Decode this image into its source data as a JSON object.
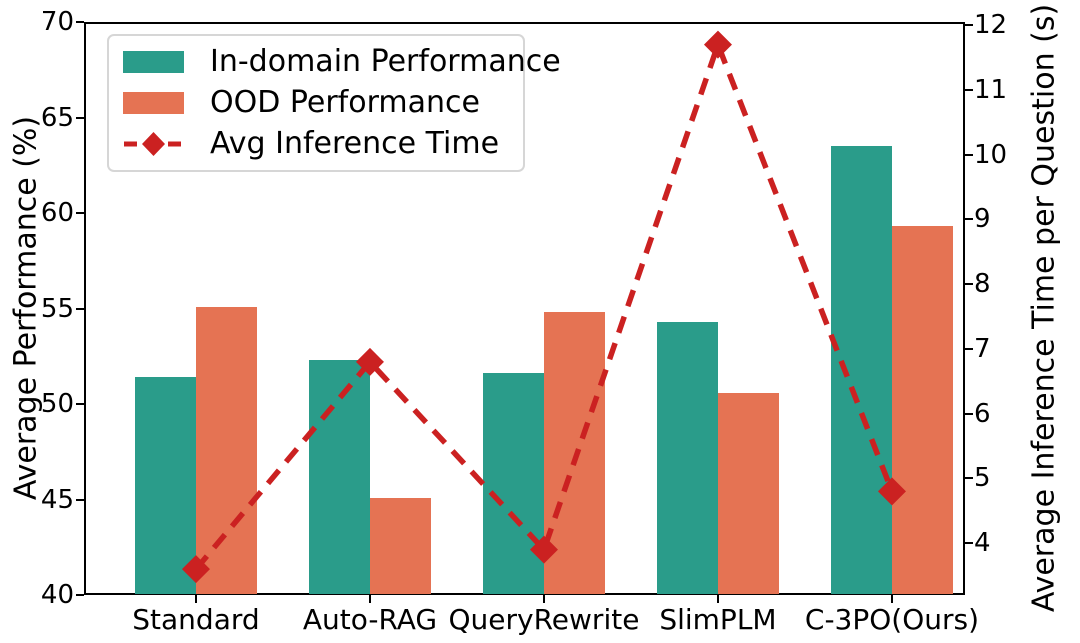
{
  "chart_data": {
    "type": "bar",
    "categories": [
      "Standard",
      "Auto-RAG",
      "QueryRewrite",
      "SlimPLM",
      "C-3PO(Ours)"
    ],
    "series": [
      {
        "name": "In-domain Performance",
        "type": "bar",
        "axis": "left",
        "color": "#2a9c8a",
        "values": [
          51.4,
          52.3,
          51.6,
          54.3,
          63.5
        ]
      },
      {
        "name": "OOD Performance",
        "type": "bar",
        "axis": "left",
        "color": "#e57353",
        "values": [
          55.1,
          45.1,
          54.8,
          50.6,
          59.3
        ]
      },
      {
        "name": "Avg Inference Time",
        "type": "line",
        "axis": "right",
        "color": "#cb2121",
        "linestyle": "dashed",
        "marker": "diamond",
        "values": [
          3.6,
          6.8,
          3.9,
          11.7,
          4.8
        ]
      }
    ],
    "left_axis": {
      "label": "Average Performance (%)",
      "ticks": [
        40,
        45,
        50,
        55,
        60,
        65,
        70
      ],
      "ylim": [
        40,
        70
      ]
    },
    "right_axis": {
      "label": "Average Inference Time per Question (s)",
      "ticks": [
        4,
        5,
        6,
        7,
        8,
        9,
        10,
        11,
        12
      ],
      "ylim": [
        3.2,
        12.05
      ]
    },
    "legend": {
      "position": "upper-left",
      "entries": [
        "In-domain Performance",
        "OOD Performance",
        "Avg Inference Time"
      ]
    },
    "grid": false,
    "background": "#ffffff",
    "spine_color": "#000000"
  }
}
